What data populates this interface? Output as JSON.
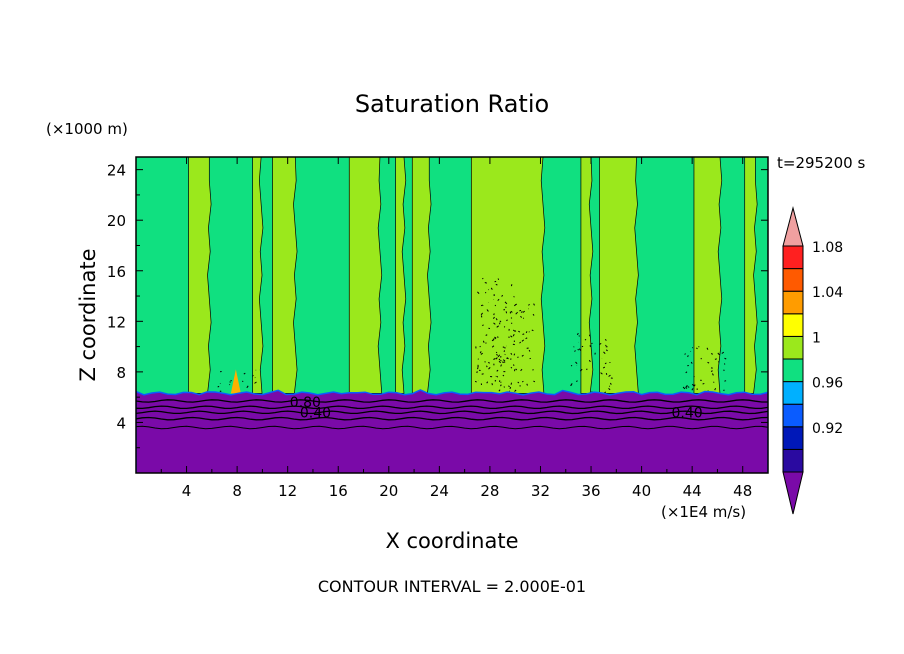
{
  "chart_data": {
    "type": "heatmap",
    "title": "Saturation Ratio",
    "xlabel": "X coordinate",
    "ylabel": "Z coordinate",
    "x_units": "(×1E4 m/s)",
    "y_units": "(×1000 m)",
    "time_label": "t=295200 s",
    "footer": "CONTOUR INTERVAL = 2.000E-01",
    "xlim": [
      0,
      50
    ],
    "ylim": [
      0,
      25
    ],
    "x_ticks": [
      "4",
      "8",
      "12",
      "16",
      "20",
      "24",
      "28",
      "32",
      "36",
      "40",
      "44",
      "48"
    ],
    "y_ticks": [
      "4",
      "8",
      "12",
      "16",
      "20",
      "24"
    ],
    "contour_labels": [
      "0.80",
      "0.40",
      "0.40"
    ],
    "colorbar": {
      "levels": [
        0.92,
        0.96,
        1,
        1.04,
        1.08
      ],
      "tick_labels": [
        "0.92",
        "0.96",
        "1",
        "1.04",
        "1.08"
      ],
      "colors": [
        "#7a0aa8",
        "#2a0aa0",
        "#0018b8",
        "#0a5cff",
        "#00b0ff",
        "#10e080",
        "#9be81c",
        "#ffff00",
        "#ff9c00",
        "#ff5a00",
        "#ff2020",
        "#f0a0a0"
      ]
    },
    "regions": {
      "dry_layer_top_km": 6.3,
      "dry_color": "#7a0aa8",
      "near_saturation_color": "#10e080",
      "supersaturation_color": "#9be81c",
      "supersaturated_bands_x": [
        [
          4.3,
          5.8
        ],
        [
          9.3,
          9.9
        ],
        [
          10.8,
          12.6
        ],
        [
          16.8,
          19.3
        ],
        [
          20.4,
          21.2
        ],
        [
          22.0,
          23.2
        ],
        [
          26.6,
          32.2
        ],
        [
          35.2,
          36.0
        ],
        [
          36.6,
          39.6
        ],
        [
          44.0,
          46.2
        ],
        [
          48.3,
          49.0
        ]
      ],
      "peak_supersaturation_x": 7.9
    }
  }
}
